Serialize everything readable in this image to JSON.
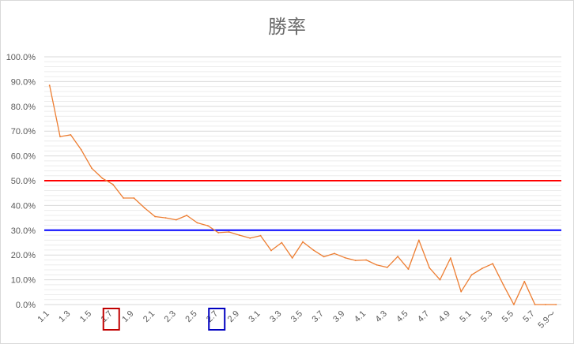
{
  "chart_data": {
    "type": "line",
    "title": "勝率",
    "xlabel": "",
    "ylabel": "",
    "categories": [
      "1.1",
      "1.2",
      "1.3",
      "1.4",
      "1.5",
      "1.6",
      "1.7",
      "1.8",
      "1.9",
      "2.0",
      "2.1",
      "2.2",
      "2.3",
      "2.4",
      "2.5",
      "2.6",
      "2.7",
      "2.8",
      "2.9",
      "3.0",
      "3.1",
      "3.2",
      "3.3",
      "3.4",
      "3.5",
      "3.6",
      "3.7",
      "3.8",
      "3.9",
      "4.0",
      "4.1",
      "4.2",
      "4.3",
      "4.4",
      "4.5",
      "4.6",
      "4.7",
      "4.8",
      "4.9",
      "5.0",
      "5.1",
      "5.2",
      "5.3",
      "5.4",
      "5.5",
      "5.6",
      "5.7",
      "5.8",
      "5.9～"
    ],
    "tick_labels": [
      "1.1",
      "1.3",
      "1.5",
      "1.7",
      "1.9",
      "2.1",
      "2.3",
      "2.5",
      "2.7",
      "2.9",
      "3.1",
      "3.3",
      "3.5",
      "3.7",
      "3.9",
      "4.1",
      "4.3",
      "4.5",
      "4.7",
      "4.9",
      "5.1",
      "5.3",
      "5.5",
      "5.7",
      "5.9～"
    ],
    "series": [
      {
        "color": "#ED7D31",
        "values": [
          88.5,
          67.8,
          68.5,
          62.5,
          55.0,
          51.0,
          48.5,
          43.0,
          43.0,
          39.0,
          35.5,
          35.0,
          34.2,
          36.0,
          33.0,
          31.8,
          29.0,
          29.3,
          28.0,
          26.8,
          27.8,
          21.8,
          25.0,
          18.8,
          25.3,
          22.0,
          19.3,
          20.6,
          18.9,
          17.8,
          18.0,
          16.0,
          15.0,
          19.4,
          14.3,
          26.0,
          14.8,
          10.0,
          18.8,
          5.2,
          12.0,
          14.6,
          16.5,
          8.0,
          0.0,
          9.3,
          0.0,
          0.0,
          0.0
        ]
      }
    ],
    "reference_lines": [
      {
        "value": 50.0,
        "color": "#FF0000"
      },
      {
        "value": 30.0,
        "color": "#0000FF"
      }
    ],
    "highlighted_ticks": [
      {
        "label": "1.7",
        "color": "#C00000"
      },
      {
        "label": "2.7",
        "color": "#0000C0"
      }
    ],
    "ylim": [
      0,
      100
    ],
    "ytick_labels": [
      "0.0%",
      "10.0%",
      "20.0%",
      "30.0%",
      "40.0%",
      "50.0%",
      "60.0%",
      "70.0%",
      "80.0%",
      "90.0%",
      "100.0%"
    ],
    "grid": true,
    "legend": "none"
  }
}
